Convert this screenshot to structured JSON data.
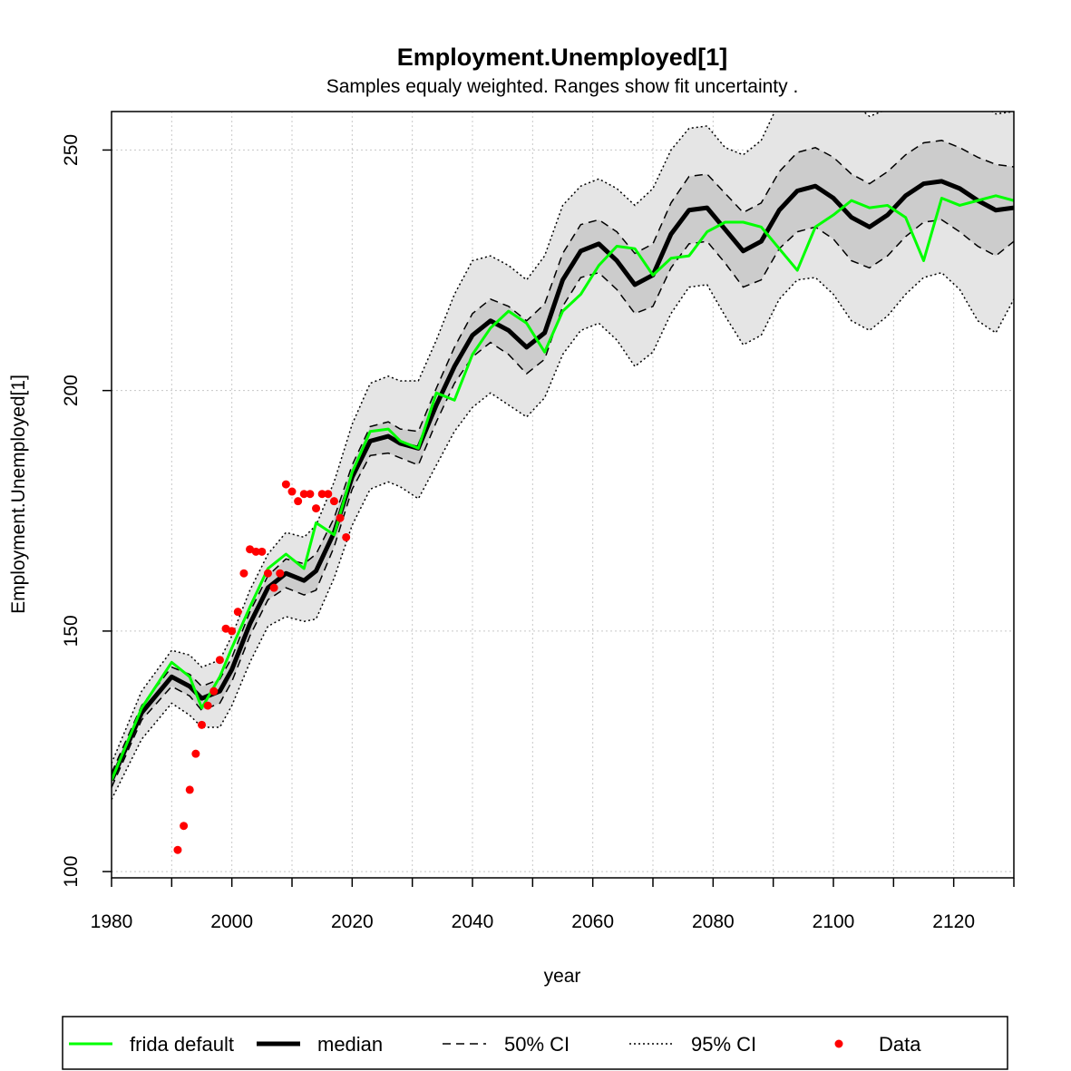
{
  "chart_data": {
    "type": "line",
    "title": "Employment.Unemployed[1]",
    "subtitle": "Samples equaly weighted. Ranges show  fit uncertainty .",
    "xlabel": "year",
    "ylabel": "Employment.Unemployed[1]",
    "xlim": [
      1980,
      2130
    ],
    "ylim": [
      98.7,
      258
    ],
    "x_ticks": [
      1980,
      2000,
      2020,
      2040,
      2060,
      2080,
      2100,
      2120
    ],
    "y_ticks": [
      100,
      150,
      200,
      250
    ],
    "grid": true,
    "legend_position": "bottom",
    "colors": {
      "frida_default": "#00ff00",
      "median": "#000000",
      "ci95_band": "#e5e5e5",
      "ci50_band": "#cccccc",
      "data": "#ff0000",
      "grid": "#c8c8c8"
    },
    "x": [
      1980,
      1985,
      1990,
      1993,
      1995,
      1998,
      2000,
      2003,
      2006,
      2009,
      2012,
      2014,
      2017,
      2020,
      2023,
      2026,
      2028,
      2031,
      2034,
      2037,
      2040,
      2043,
      2046,
      2049,
      2052,
      2055,
      2058,
      2061,
      2064,
      2067,
      2070,
      2073,
      2076,
      2079,
      2082,
      2085,
      2088,
      2091,
      2094,
      2097,
      2100,
      2103,
      2106,
      2109,
      2112,
      2115,
      2118,
      2121,
      2124,
      2127,
      2130
    ],
    "series": [
      {
        "name": "median",
        "values": [
          119,
          133,
          140.5,
          138.5,
          136,
          137.5,
          142,
          151.5,
          159,
          162,
          160.5,
          162.5,
          170.5,
          182,
          189.5,
          190.5,
          189,
          188,
          197,
          205,
          211.5,
          214.5,
          212.5,
          209,
          212,
          223,
          229,
          230.5,
          227,
          222,
          224,
          232.5,
          237.5,
          238,
          233.5,
          229,
          231,
          237.5,
          241.5,
          242.5,
          240,
          236,
          234,
          236.5,
          240.5,
          243,
          243.5,
          242,
          239.5,
          237.5,
          238
        ]
      },
      {
        "name": "ci50_upper",
        "values": [
          120.5,
          134.5,
          142.5,
          141,
          138.5,
          140,
          144.5,
          154,
          161.5,
          165,
          164,
          166,
          173.5,
          184.5,
          192.5,
          193.5,
          192,
          191.5,
          200.5,
          209,
          216,
          219,
          217.5,
          214.5,
          218,
          228.5,
          234.5,
          235.5,
          233,
          228.5,
          230.5,
          239,
          244.5,
          245,
          241,
          237,
          239,
          245.5,
          249.5,
          250.5,
          248.5,
          245,
          243,
          245.5,
          249,
          251.5,
          252,
          250.5,
          248.5,
          247,
          246.5
        ]
      },
      {
        "name": "ci50_lower",
        "values": [
          117.5,
          131.5,
          138.5,
          136.5,
          133.5,
          135,
          139.5,
          149,
          156.5,
          159,
          157.5,
          158.5,
          167.5,
          179.5,
          186.5,
          187,
          186,
          184.5,
          193.5,
          201.5,
          207,
          210,
          207.5,
          203.5,
          206.5,
          217.5,
          223.5,
          224.5,
          221,
          216,
          217.5,
          225.5,
          230.5,
          231,
          226.5,
          221.5,
          223,
          229.5,
          233,
          234,
          231.5,
          227,
          225.5,
          228,
          232,
          235,
          235.5,
          233,
          230,
          228,
          231
        ]
      },
      {
        "name": "ci95_upper",
        "values": [
          122.5,
          137.5,
          146,
          145,
          142.5,
          144,
          149,
          158.5,
          166,
          170.5,
          169.5,
          172,
          181,
          193,
          201.5,
          203,
          202,
          202,
          210.5,
          220,
          227,
          228,
          226,
          223,
          228,
          238.5,
          242.5,
          244,
          242,
          238.5,
          242,
          250,
          254.5,
          255,
          250.5,
          249,
          252,
          260,
          264,
          266,
          264.5,
          260,
          257,
          258.5,
          262,
          264,
          265,
          263.5,
          260,
          257.5,
          258
        ]
      },
      {
        "name": "ci95_lower",
        "values": [
          115,
          127.5,
          135,
          132.5,
          130,
          130,
          134.5,
          143.5,
          151,
          153,
          152,
          152.5,
          161,
          172,
          179.5,
          181,
          180,
          177.5,
          184.5,
          191.5,
          196.5,
          199.5,
          197,
          194.5,
          198.5,
          207.5,
          212.5,
          214,
          210.5,
          205,
          208,
          216,
          221.5,
          222,
          215.5,
          209.5,
          211.5,
          219,
          223,
          223.5,
          220,
          214.5,
          212.5,
          215.5,
          220,
          223.5,
          224.5,
          221,
          214.5,
          212,
          219
        ]
      },
      {
        "name": "frida default",
        "values": [
          119,
          134,
          143.5,
          140.5,
          134,
          140.5,
          146.5,
          155,
          163,
          166,
          163,
          172.5,
          170,
          183,
          191.5,
          192,
          189.5,
          188,
          199.5,
          198,
          207.5,
          213,
          216.5,
          214,
          208,
          216.5,
          220,
          226,
          230,
          229.5,
          224,
          227.5,
          228,
          233,
          235,
          235,
          234,
          229.5,
          225,
          234,
          236.5,
          239.5,
          238,
          238.5,
          236,
          227,
          240,
          238.5,
          239.5,
          240.5,
          239.5
        ]
      }
    ],
    "data_points": {
      "name": "Data",
      "x": [
        1991,
        1992,
        1993,
        1994,
        1995,
        1996,
        1997,
        1998,
        1999,
        2000,
        2001,
        2002,
        2003,
        2004,
        2005,
        2006,
        2007,
        2008,
        2009,
        2010,
        2011,
        2012,
        2013,
        2014,
        2015,
        2016,
        2017,
        2018,
        2019
      ],
      "y": [
        104.5,
        109.5,
        117,
        124.5,
        130.5,
        134.5,
        137.5,
        144,
        150.5,
        150,
        154,
        162,
        167,
        166.5,
        166.5,
        162,
        159,
        162,
        180.5,
        179,
        177,
        178.5,
        178.5,
        175.5,
        178.5,
        178.5,
        177,
        173.5,
        169.5
      ]
    }
  },
  "legend": {
    "items": [
      {
        "label": "frida default",
        "style": "green-line"
      },
      {
        "label": "median",
        "style": "thick-black-line"
      },
      {
        "label": "50% CI",
        "style": "dashed-line"
      },
      {
        "label": "95% CI",
        "style": "dotted-line"
      },
      {
        "label": "Data",
        "style": "red-dot"
      }
    ]
  }
}
